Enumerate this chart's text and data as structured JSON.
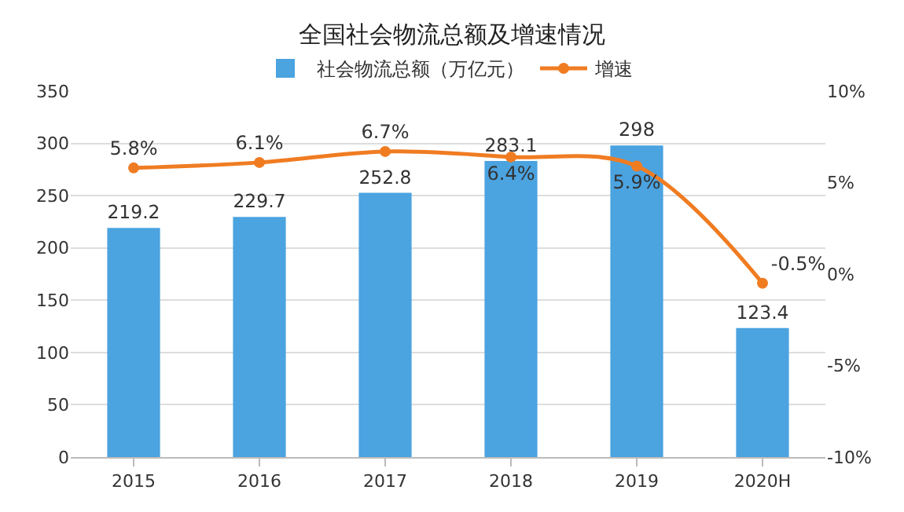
{
  "chart_data": {
    "type": "bar",
    "title": "全国社会物流总额及增速情况",
    "categories": [
      "2015",
      "2016",
      "2017",
      "2018",
      "2019",
      "2020H"
    ],
    "series": [
      {
        "name": "社会物流总额（万亿元）",
        "color": "#4ba3e0",
        "values": [
          219.2,
          229.7,
          252.8,
          283.1,
          298,
          123.4
        ],
        "value_labels": [
          "219.2",
          "229.7",
          "252.8",
          "283.1",
          "298",
          "123.4"
        ]
      },
      {
        "name": "增速",
        "type": "line",
        "axis": "y2",
        "color": "#f07c22",
        "marker": "circle",
        "values": [
          5.8,
          6.1,
          6.7,
          6.4,
          5.9,
          -0.5
        ],
        "value_labels": [
          "5.8%",
          "6.1%",
          "6.7%",
          "6.4%",
          "5.9%",
          "-0.5%"
        ]
      }
    ],
    "ylim": [
      0,
      350
    ],
    "yticks": [
      0,
      50,
      100,
      150,
      200,
      250,
      300,
      350
    ],
    "y2lim": [
      -10,
      10
    ],
    "y2ticks": [
      {
        "value": -10,
        "label": "-10%"
      },
      {
        "value": -5,
        "label": "-5%"
      },
      {
        "value": 0,
        "label": "0%"
      },
      {
        "value": 5,
        "label": "5%"
      },
      {
        "value": 10,
        "label": "10%"
      }
    ],
    "grid": "y",
    "legend": "top"
  }
}
